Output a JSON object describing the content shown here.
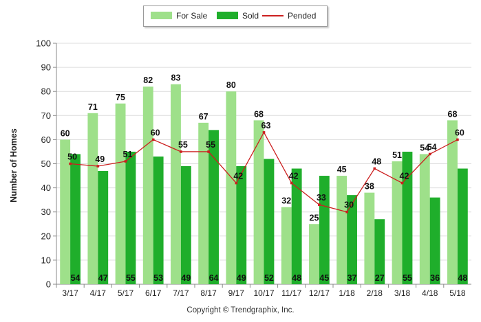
{
  "chart_data": {
    "type": "bar",
    "categories": [
      "3/17",
      "4/17",
      "5/17",
      "6/17",
      "7/17",
      "8/17",
      "9/17",
      "10/17",
      "11/17",
      "12/17",
      "1/18",
      "2/18",
      "3/18",
      "4/18",
      "5/18"
    ],
    "series": [
      {
        "name": "For Sale",
        "type": "bar",
        "color": "#9ee08a",
        "values": [
          60,
          71,
          75,
          82,
          83,
          67,
          80,
          68,
          32,
          25,
          45,
          38,
          51,
          54,
          68
        ]
      },
      {
        "name": "Sold",
        "type": "bar",
        "color": "#1fae2b",
        "values": [
          54,
          47,
          55,
          53,
          49,
          64,
          49,
          52,
          48,
          45,
          37,
          27,
          55,
          36,
          48
        ]
      },
      {
        "name": "Pended",
        "type": "line",
        "color": "#cc1f1f",
        "values": [
          50,
          49,
          51,
          60,
          55,
          55,
          42,
          63,
          42,
          33,
          30,
          48,
          42,
          54,
          60
        ]
      }
    ],
    "ylabel": "Number of Homes",
    "xlabel": "",
    "ylim": [
      0,
      100
    ],
    "yticks": [
      0,
      10,
      20,
      30,
      40,
      50,
      60,
      70,
      80,
      90,
      100
    ],
    "grid": true,
    "legend_position": "top"
  },
  "legend": {
    "for_sale_label": "For Sale",
    "sold_label": "Sold",
    "pended_label": "Pended",
    "for_sale_color": "#9ee08a",
    "sold_color": "#1fae2b",
    "pended_color": "#cc1f1f"
  },
  "footer": {
    "copyright": "Copyright © Trendgraphix, Inc."
  }
}
